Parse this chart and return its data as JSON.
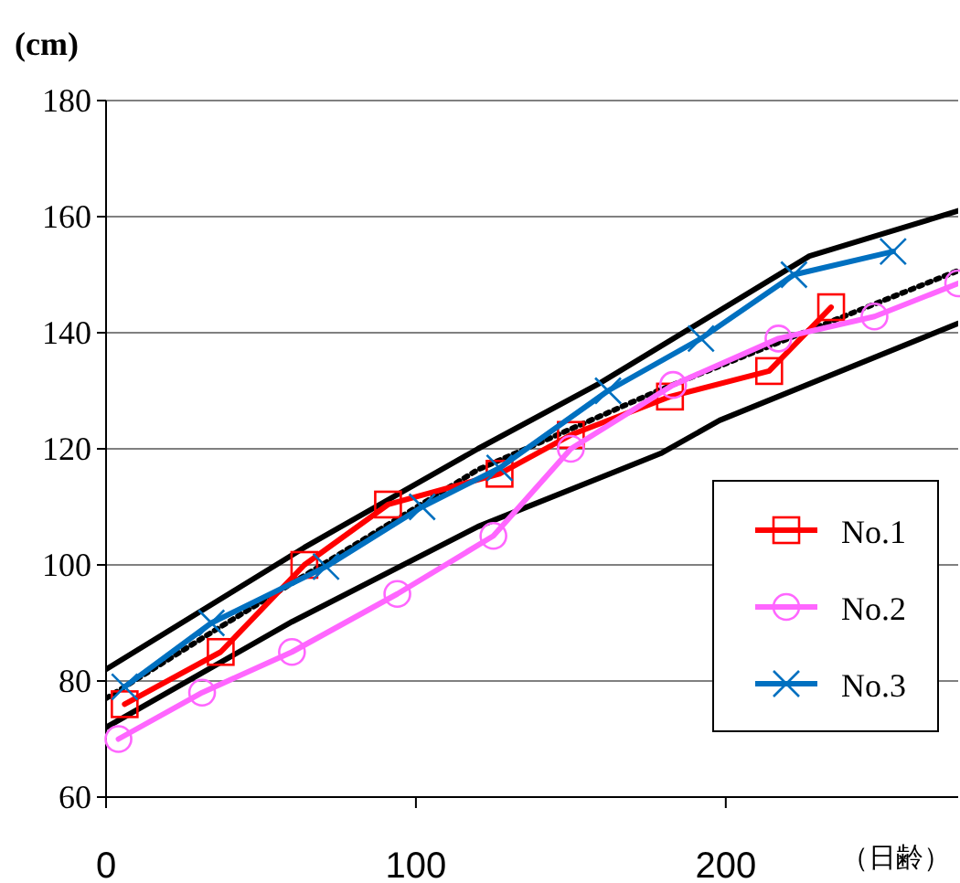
{
  "chart_data": {
    "type": "line",
    "ylabel": "(cm)",
    "xlabel": "（日齢）",
    "xlim": [
      0,
      275
    ],
    "ylim": [
      60,
      180
    ],
    "xticks": [
      0,
      100,
      200
    ],
    "yticks": [
      60,
      80,
      100,
      120,
      140,
      160,
      180
    ],
    "grid": "y",
    "legend": "right",
    "series": [
      {
        "color": "#000000",
        "line_style": "solid",
        "marker": "none",
        "x": [
          0,
          64,
          120,
          159,
          227,
          275
        ],
        "values": [
          82,
          103,
          120,
          131.2,
          153.2,
          161
        ]
      },
      {
        "color": "#000000",
        "line_style": "solid",
        "marker": "none",
        "x": [
          0,
          60,
          120,
          179,
          198,
          275
        ],
        "values": [
          72,
          90.2,
          106.6,
          119.2,
          124.9,
          141.6
        ]
      },
      {
        "color": "#000000",
        "line_style": "dotted",
        "marker": "none",
        "x": [
          0,
          35,
          120,
          179,
          275
        ],
        "values": [
          77,
          88.7,
          116.4,
          130.2,
          150.7
        ]
      },
      {
        "name": "No.1",
        "color": "#ff0000",
        "line_style": "solid",
        "marker": "square",
        "x": [
          6,
          37,
          64,
          91,
          127,
          150,
          182,
          214,
          234
        ],
        "values": [
          76,
          85,
          100,
          110.4,
          115.7,
          122.4,
          129,
          133.4,
          144.4
        ]
      },
      {
        "name": "No.2",
        "color": "#ff66ff",
        "line_style": "solid",
        "marker": "circle",
        "x": [
          4,
          31,
          60,
          94,
          125,
          150,
          183,
          217,
          248,
          275
        ],
        "values": [
          70,
          78,
          85,
          95,
          105,
          120,
          131,
          139,
          142.8,
          148.5
        ]
      },
      {
        "name": "No.3",
        "color": "#0070c0",
        "line_style": "solid",
        "marker": "cross",
        "x": [
          6,
          34,
          71,
          102,
          127,
          162,
          192,
          222,
          254
        ],
        "values": [
          79,
          90,
          99.7,
          110,
          116.7,
          130,
          139,
          150,
          154
        ]
      }
    ]
  }
}
